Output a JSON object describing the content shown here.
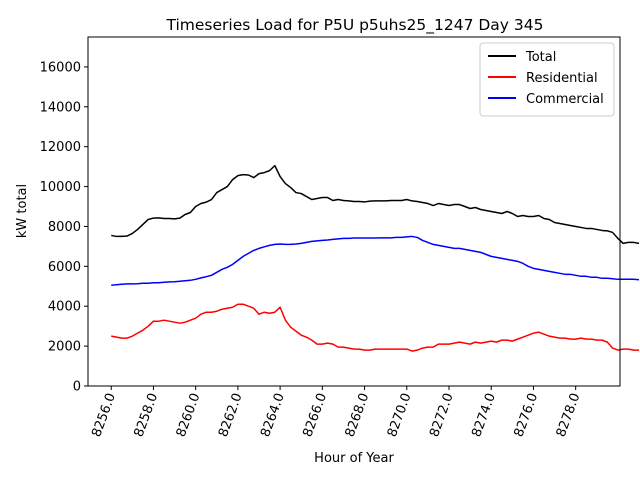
{
  "chart_data": {
    "type": "line",
    "title": "Timeseries Load for P5U p5uhs25_1247  Day 345",
    "xlabel": "Hour of Year",
    "ylabel": "kW total",
    "xlim": [
      8254.9,
      8280.1
    ],
    "ylim": [
      0,
      17500
    ],
    "xticks": [
      8256,
      8258,
      8260,
      8262,
      8264,
      8266,
      8268,
      8270,
      8272,
      8274,
      8276,
      8278
    ],
    "xtick_labels": [
      "8256.0",
      "8258.0",
      "8260.0",
      "8262.0",
      "8264.0",
      "8266.0",
      "8268.0",
      "8270.0",
      "8272.0",
      "8274.0",
      "8276.0",
      "8278.0"
    ],
    "yticks": [
      0,
      2000,
      4000,
      6000,
      8000,
      10000,
      12000,
      14000,
      16000
    ],
    "ytick_labels": [
      "0",
      "2000",
      "4000",
      "6000",
      "8000",
      "10000",
      "12000",
      "14000",
      "16000"
    ],
    "legend_position": "top-right",
    "x_start": 8256,
    "x_step": 0.25,
    "series": [
      {
        "name": "Total",
        "color": "#000000",
        "values": [
          7550,
          7500,
          7500,
          7520,
          7650,
          7850,
          8100,
          8350,
          8420,
          8430,
          8400,
          8400,
          8380,
          8420,
          8600,
          8700,
          9000,
          9150,
          9220,
          9350,
          9700,
          9850,
          10000,
          10350,
          10550,
          10600,
          10580,
          10450,
          10650,
          10700,
          10800,
          11050,
          10500,
          10150,
          9950,
          9700,
          9650,
          9500,
          9350,
          9400,
          9450,
          9450,
          9300,
          9350,
          9300,
          9280,
          9250,
          9250,
          9230,
          9270,
          9280,
          9280,
          9280,
          9300,
          9300,
          9300,
          9350,
          9280,
          9250,
          9200,
          9150,
          9050,
          9150,
          9100,
          9050,
          9100,
          9100,
          9000,
          8900,
          8950,
          8850,
          8800,
          8750,
          8700,
          8650,
          8750,
          8650,
          8500,
          8550,
          8500,
          8500,
          8550,
          8400,
          8350,
          8200,
          8150,
          8100,
          8050,
          8000,
          7950,
          7900,
          7900,
          7850,
          7800,
          7780,
          7700,
          7400,
          7150,
          7200,
          7200,
          7150
        ]
      },
      {
        "name": "Residential",
        "color": "#ff0000",
        "values": [
          2500,
          2450,
          2400,
          2400,
          2500,
          2650,
          2800,
          3000,
          3250,
          3250,
          3300,
          3250,
          3200,
          3150,
          3200,
          3300,
          3400,
          3600,
          3700,
          3700,
          3750,
          3850,
          3900,
          3950,
          4100,
          4100,
          4000,
          3900,
          3600,
          3700,
          3650,
          3700,
          3950,
          3300,
          2950,
          2750,
          2550,
          2450,
          2300,
          2100,
          2100,
          2150,
          2100,
          1950,
          1950,
          1900,
          1850,
          1850,
          1800,
          1800,
          1850,
          1850,
          1850,
          1850,
          1850,
          1850,
          1850,
          1750,
          1800,
          1900,
          1950,
          1950,
          2100,
          2100,
          2100,
          2150,
          2200,
          2150,
          2100,
          2200,
          2150,
          2200,
          2250,
          2200,
          2300,
          2300,
          2250,
          2350,
          2450,
          2550,
          2650,
          2700,
          2600,
          2500,
          2450,
          2400,
          2400,
          2350,
          2350,
          2400,
          2350,
          2350,
          2300,
          2300,
          2200,
          1900,
          1800,
          1850,
          1850,
          1800,
          1800
        ]
      },
      {
        "name": "Commercial",
        "color": "#0000ff",
        "values": [
          5050,
          5080,
          5100,
          5120,
          5120,
          5130,
          5150,
          5150,
          5180,
          5180,
          5200,
          5220,
          5230,
          5250,
          5280,
          5300,
          5350,
          5420,
          5480,
          5550,
          5700,
          5850,
          5950,
          6100,
          6300,
          6500,
          6650,
          6800,
          6900,
          6980,
          7050,
          7100,
          7120,
          7100,
          7100,
          7120,
          7150,
          7200,
          7250,
          7280,
          7300,
          7320,
          7350,
          7380,
          7400,
          7400,
          7420,
          7420,
          7420,
          7420,
          7420,
          7430,
          7430,
          7430,
          7450,
          7450,
          7480,
          7500,
          7450,
          7300,
          7200,
          7100,
          7050,
          7000,
          6950,
          6900,
          6900,
          6850,
          6800,
          6750,
          6700,
          6600,
          6500,
          6450,
          6400,
          6350,
          6300,
          6250,
          6150,
          6000,
          5900,
          5850,
          5800,
          5750,
          5700,
          5650,
          5600,
          5600,
          5550,
          5500,
          5500,
          5450,
          5450,
          5400,
          5400,
          5380,
          5350,
          5350,
          5350,
          5350,
          5330
        ]
      }
    ]
  }
}
